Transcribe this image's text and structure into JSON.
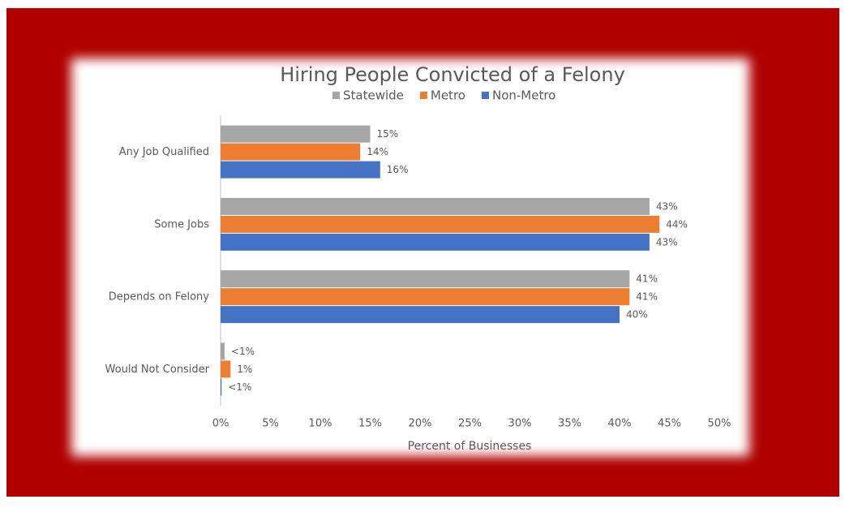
{
  "chart_data": {
    "type": "barh",
    "title": "Hiring People Convicted of a Felony",
    "x_label": "Percent of Businesses",
    "categories": [
      "Any Job Qualified",
      "Some Jobs",
      "Depends on Felony",
      "Would Not Consider"
    ],
    "series": [
      {
        "name": "Statewide",
        "color": "#a5a5a5",
        "values": [
          15,
          43,
          41,
          0.4
        ],
        "value_labels": [
          "15%",
          "43%",
          "41%",
          "<1%"
        ]
      },
      {
        "name": "Metro",
        "color": "#ed7d31",
        "values": [
          14,
          44,
          41,
          1
        ],
        "value_labels": [
          "14%",
          "44%",
          "41%",
          "1%"
        ]
      },
      {
        "name": "Non-Metro",
        "color": "#4472c4",
        "values": [
          16,
          43,
          40,
          0.1
        ],
        "value_labels": [
          "16%",
          "43%",
          "40%",
          "<1%"
        ]
      }
    ],
    "xlim": [
      0,
      50
    ],
    "xticks": [
      {
        "value": 0,
        "label": "0%"
      },
      {
        "value": 5,
        "label": "5%"
      },
      {
        "value": 10,
        "label": "10%"
      },
      {
        "value": 15,
        "label": "15%"
      },
      {
        "value": 20,
        "label": "20%"
      },
      {
        "value": 25,
        "label": "25%"
      },
      {
        "value": 30,
        "label": "30%"
      },
      {
        "value": 35,
        "label": "35%"
      },
      {
        "value": 40,
        "label": "40%"
      },
      {
        "value": 45,
        "label": "45%"
      },
      {
        "value": 50,
        "label": "50%"
      }
    ],
    "legend": "top",
    "grid": false
  }
}
